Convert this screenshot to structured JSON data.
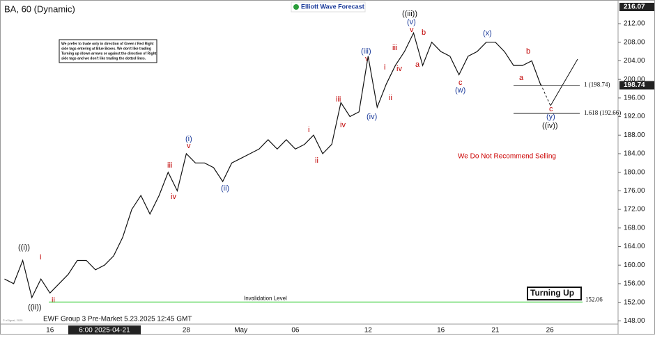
{
  "chart_data": {
    "type": "line",
    "title": "BA, 60 (Dynamic)",
    "logo": "Elliott Wave Forecast",
    "footer": "EWF Group 3 Pre-Market 5.23.2025 12:45 GMT",
    "copyright": "© eSignal, 2025",
    "note": [
      "We prefer to trade only in direction of Green / Red Right",
      "side tags entering at Blue Boxes. We don't like trading",
      "Turning up /down arrows or against the direction of Right",
      "side tags and we don't like trading the dotted lines."
    ],
    "warning": "We Do Not Recommend Selling",
    "signal": "Turning Up",
    "categories": [
      null,
      null,
      null,
      null,
      null,
      "16",
      null,
      null,
      null,
      null,
      null,
      "6:00 2025-04-21",
      null,
      null,
      null,
      null,
      null,
      null,
      null,
      null,
      "28",
      null,
      null,
      null,
      null,
      null,
      "May",
      null,
      null,
      null,
      null,
      null,
      "06",
      null,
      null,
      null,
      null,
      null,
      null,
      null,
      "12",
      null,
      null,
      null,
      null,
      null,
      null,
      null,
      "16",
      null,
      null,
      null,
      null,
      null,
      "21",
      null,
      null,
      null,
      null,
      null,
      "26",
      null,
      null,
      null,
      null,
      null,
      null,
      null
    ],
    "series": [
      {
        "name": "BA",
        "color": "#111111",
        "values": [
          157,
          156,
          161,
          153,
          157,
          154,
          156,
          158,
          161,
          161,
          159,
          160,
          162,
          166,
          172,
          175,
          171,
          175,
          180,
          176,
          184,
          182,
          182,
          181,
          178,
          182,
          183,
          184,
          185,
          187,
          185,
          187,
          185,
          186,
          188,
          184,
          186,
          195,
          192,
          193,
          205,
          194,
          199,
          203,
          206,
          210,
          203,
          208,
          206,
          205,
          201,
          205,
          206,
          208,
          208,
          206,
          203,
          203,
          204,
          198.74,
          null,
          null,
          null,
          null,
          null,
          null,
          null,
          null
        ]
      }
    ],
    "ylim": [
      147,
      216.5
    ],
    "yticks": [
      {
        "value": 148,
        "label": "148.00"
      },
      {
        "value": 152,
        "label": "152.00"
      },
      {
        "value": 156,
        "label": "156.00"
      },
      {
        "value": 160,
        "label": "160.00"
      },
      {
        "value": 164,
        "label": "164.00"
      },
      {
        "value": 168,
        "label": "168.00"
      },
      {
        "value": 172,
        "label": "172.00"
      },
      {
        "value": 176,
        "label": "176.00"
      },
      {
        "value": 180,
        "label": "180.00"
      },
      {
        "value": 184,
        "label": "184.00"
      },
      {
        "value": 188,
        "label": "188.00"
      },
      {
        "value": 192,
        "label": "192.00"
      },
      {
        "value": 196,
        "label": "196.00"
      },
      {
        "value": 200,
        "label": "200.00"
      },
      {
        "value": 204,
        "label": "204.00"
      },
      {
        "value": 208,
        "label": "208.00"
      },
      {
        "value": 212,
        "label": "212.00"
      }
    ],
    "high_price": 216.07,
    "last_price": 198.74,
    "levels": [
      {
        "label": "1 (198.74)",
        "value": 198.74,
        "color": "#333333"
      },
      {
        "label": "1.618 (192.66)",
        "value": 192.66,
        "color": "#333333"
      }
    ],
    "invalidation": {
      "label": "Invalidation Level",
      "value": 152.06,
      "color": "#33cc33"
    },
    "annotations": [
      "((i))",
      "((ii))",
      "i",
      "ii",
      "iii",
      "iv",
      "v",
      "(i)",
      "(ii)",
      "i",
      "ii",
      "iii",
      "iv",
      "(iii)",
      "v",
      "(iv)",
      "i",
      "ii",
      "iii",
      "iv",
      "((iii))",
      "(v)",
      "v",
      "a",
      "b",
      "c",
      "(w)",
      "(x)",
      "b",
      "a",
      "c",
      "(y)",
      "((iv))"
    ]
  }
}
